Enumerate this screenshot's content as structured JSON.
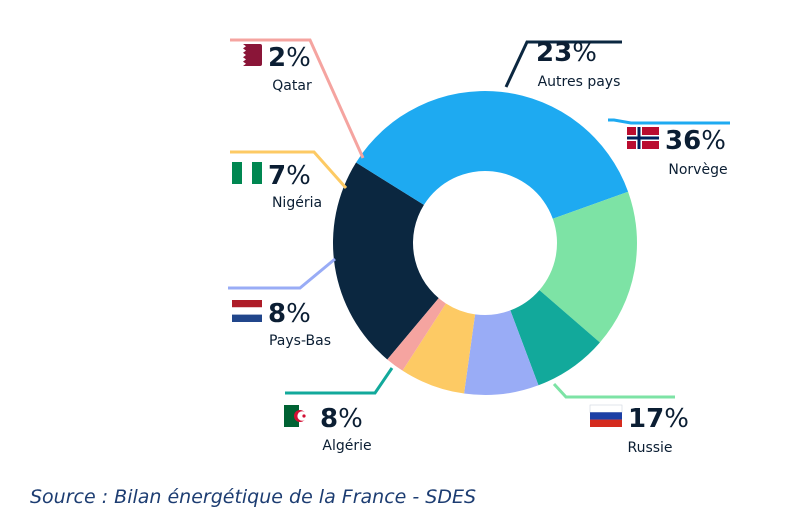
{
  "chart_data": {
    "type": "pie",
    "donut": true,
    "slices": [
      {
        "label": "Autres pays",
        "value": 23,
        "display": "23",
        "color": "#0b2740",
        "flag": "none"
      },
      {
        "label": "Norvège",
        "value": 36,
        "display": "36",
        "color": "#1eaaf1",
        "flag": "norway-flag"
      },
      {
        "label": "Russie",
        "value": 17,
        "display": "17",
        "color": "#7de3a5",
        "flag": "russia-flag"
      },
      {
        "label": "Algérie",
        "value": 8,
        "display": "8",
        "color": "#12a99b",
        "flag": "algeria-flag"
      },
      {
        "label": "Pays-Bas",
        "value": 8,
        "display": "8",
        "color": "#99acf6",
        "flag": "netherlands-flag"
      },
      {
        "label": "Nigéria",
        "value": 7,
        "display": "7",
        "color": "#fdca64",
        "flag": "nigeria-flag"
      },
      {
        "label": "Qatar",
        "value": 2,
        "display": "2",
        "color": "#f5a4a0",
        "flag": "qatar-flag"
      }
    ],
    "percent_suffix": "%"
  },
  "source": "Source : Bilan énergétique de la France - SDES"
}
